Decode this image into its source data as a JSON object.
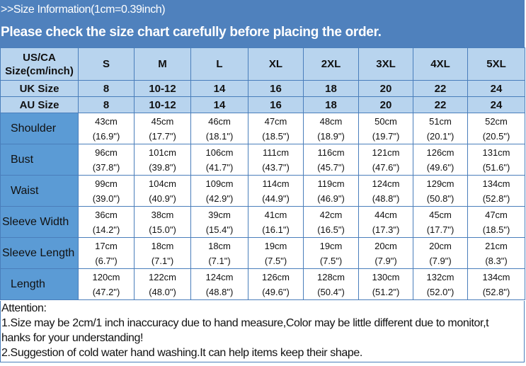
{
  "banner": {
    "info": ">>Size Information(1cm=0.39inch)",
    "notice": "Please check the size chart carefully before placing the order."
  },
  "table": {
    "header": {
      "label": "US/CA Size(cm/inch)",
      "sizes": [
        "S",
        "M",
        "L",
        "XL",
        "2XL",
        "3XL",
        "4XL",
        "5XL"
      ]
    },
    "uk": {
      "label": "UK Size",
      "values": [
        "8",
        "10-12",
        "14",
        "16",
        "18",
        "20",
        "22",
        "24"
      ]
    },
    "au": {
      "label": "AU Size",
      "values": [
        "8",
        "10-12",
        "14",
        "16",
        "18",
        "20",
        "22",
        "24"
      ]
    },
    "rows": [
      {
        "label": "Shoulder",
        "cm": [
          "43cm",
          "45cm",
          "46cm",
          "47cm",
          "48cm",
          "50cm",
          "51cm",
          "52cm"
        ],
        "inch": [
          "(16.9\")",
          "(17.7\")",
          "(18.1\")",
          "(18.5\")",
          "(18.9\")",
          "(19.7\")",
          "(20.1\")",
          "(20.5\")"
        ]
      },
      {
        "label": "Bust",
        "cm": [
          "96cm",
          "101cm",
          "106cm",
          "111cm",
          "116cm",
          "121cm",
          "126cm",
          "131cm"
        ],
        "inch": [
          "(37.8\")",
          "(39.8\")",
          "(41.7\")",
          "(43.7\")",
          "(45.7\")",
          "(47.6\")",
          "(49.6\")",
          "(51.6\")"
        ]
      },
      {
        "label": "Waist",
        "cm": [
          "99cm",
          "104cm",
          "109cm",
          "114cm",
          "119cm",
          "124cm",
          "129cm",
          "134cm"
        ],
        "inch": [
          "(39.0\")",
          "(40.9\")",
          "(42.9\")",
          "(44.9\")",
          "(46.9\")",
          "(48.8\")",
          "(50.8\")",
          "(52.8\")"
        ]
      },
      {
        "label": "Sleeve Width",
        "cm": [
          "36cm",
          "38cm",
          "39cm",
          "41cm",
          "42cm",
          "44cm",
          "45cm",
          "47cm"
        ],
        "inch": [
          "(14.2\")",
          "(15.0\")",
          "(15.4\")",
          "(16.1\")",
          "(16.5\")",
          "(17.3\")",
          "(17.7\")",
          "(18.5\")"
        ]
      },
      {
        "label": "Sleeve Length",
        "cm": [
          "17cm",
          "18cm",
          "18cm",
          "19cm",
          "19cm",
          "20cm",
          "20cm",
          "21cm"
        ],
        "inch": [
          "(6.7\")",
          "(7.1\")",
          "(7.1\")",
          "(7.5\")",
          "(7.5\")",
          "(7.9\")",
          "(7.9\")",
          "(8.3\")"
        ]
      },
      {
        "label": "Length",
        "cm": [
          "120cm",
          "122cm",
          "124cm",
          "126cm",
          "128cm",
          "130cm",
          "132cm",
          "134cm"
        ],
        "inch": [
          "(47.2\")",
          "(48.0\")",
          "(48.8\")",
          "(49.6\")",
          "(50.4\")",
          "(51.2\")",
          "(52.0\")",
          "(52.8\")"
        ]
      }
    ]
  },
  "attention": {
    "title": "Attention:",
    "line1a": "1.Size may be 2cm/1  inch inaccuracy due to hand measure,Color may be little different due to monitor,t",
    "line1b": "hanks for your understanding!",
    "line2": "2.Suggestion of cold water hand washing.It can help items keep their shape."
  },
  "colors": {
    "banner": "#4f81bd",
    "header_rows": "#b8d4ee",
    "label_column": "#5b9bd5",
    "border": "#4a7ebb"
  }
}
